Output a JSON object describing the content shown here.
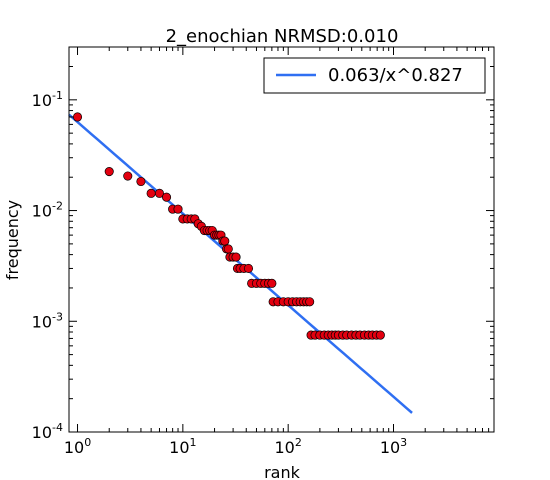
{
  "chart_data": {
    "type": "scatter",
    "title": "2_enochian   NRMSD:0.010",
    "xlabel": "rank",
    "ylabel": "frequency",
    "xscale": "log",
    "yscale": "log",
    "xlim": [
      0.83,
      9000
    ],
    "ylim": [
      0.0001,
      0.3
    ],
    "xticks": [
      {
        "base": "10",
        "exp": "0",
        "value": 1
      },
      {
        "base": "10",
        "exp": "1",
        "value": 10
      },
      {
        "base": "10",
        "exp": "2",
        "value": 100
      },
      {
        "base": "10",
        "exp": "3",
        "value": 1000
      }
    ],
    "yticks": [
      {
        "base": "10",
        "exp": "-1",
        "value": 0.1
      },
      {
        "base": "10",
        "exp": "-2",
        "value": 0.01
      },
      {
        "base": "10",
        "exp": "-3",
        "value": 0.001
      },
      {
        "base": "10",
        "exp": "-4",
        "value": 0.0001
      }
    ],
    "legend": {
      "label": "0.063/x^0.827",
      "placement": "top-right"
    },
    "fit": {
      "a": 0.063,
      "b": 0.827,
      "x_range": [
        0.83,
        1500
      ],
      "color": "#2f6ff2"
    },
    "series": [
      {
        "marker_color": "#e3000f",
        "edge_color": "#000000",
        "points": [
          [
            1,
            0.07
          ],
          [
            2,
            0.0225
          ],
          [
            3,
            0.0205
          ],
          [
            4,
            0.0183
          ],
          [
            5,
            0.0143
          ],
          [
            6,
            0.0143
          ],
          [
            7,
            0.0132
          ],
          [
            8,
            0.0103
          ],
          [
            9,
            0.0103
          ],
          [
            10,
            0.0084
          ],
          [
            11,
            0.0084
          ],
          [
            12,
            0.0084
          ],
          [
            13,
            0.0084
          ],
          [
            14,
            0.0076
          ],
          [
            15,
            0.0072
          ],
          [
            16,
            0.0066
          ],
          [
            17,
            0.0066
          ],
          [
            18,
            0.0066
          ],
          [
            19,
            0.0066
          ],
          [
            20,
            0.006
          ],
          [
            21,
            0.006
          ],
          [
            22,
            0.006
          ],
          [
            23,
            0.006
          ],
          [
            24,
            0.0053
          ],
          [
            25,
            0.0053
          ],
          [
            26,
            0.0045
          ],
          [
            27,
            0.0045
          ],
          [
            28,
            0.0038
          ],
          [
            30,
            0.0038
          ],
          [
            32,
            0.0038
          ],
          [
            33,
            0.003
          ],
          [
            35,
            0.003
          ],
          [
            38,
            0.003
          ],
          [
            42,
            0.003
          ],
          [
            45,
            0.0022
          ],
          [
            50,
            0.0022
          ],
          [
            55,
            0.0022
          ],
          [
            60,
            0.0022
          ],
          [
            65,
            0.0022
          ],
          [
            70,
            0.0022
          ],
          [
            72,
            0.0015
          ],
          [
            80,
            0.0015
          ],
          [
            90,
            0.0015
          ],
          [
            100,
            0.0015
          ],
          [
            110,
            0.0015
          ],
          [
            120,
            0.0015
          ],
          [
            130,
            0.0015
          ],
          [
            140,
            0.0015
          ],
          [
            150,
            0.0015
          ],
          [
            160,
            0.0015
          ],
          [
            165,
            0.00075
          ],
          [
            180,
            0.00075
          ],
          [
            200,
            0.00075
          ],
          [
            220,
            0.00075
          ],
          [
            240,
            0.00075
          ],
          [
            260,
            0.00075
          ],
          [
            280,
            0.00075
          ],
          [
            300,
            0.00075
          ],
          [
            330,
            0.00075
          ],
          [
            360,
            0.00075
          ],
          [
            400,
            0.00075
          ],
          [
            440,
            0.00075
          ],
          [
            480,
            0.00075
          ],
          [
            530,
            0.00075
          ],
          [
            580,
            0.00075
          ],
          [
            630,
            0.00075
          ],
          [
            690,
            0.00075
          ],
          [
            750,
            0.00075
          ]
        ]
      }
    ]
  }
}
